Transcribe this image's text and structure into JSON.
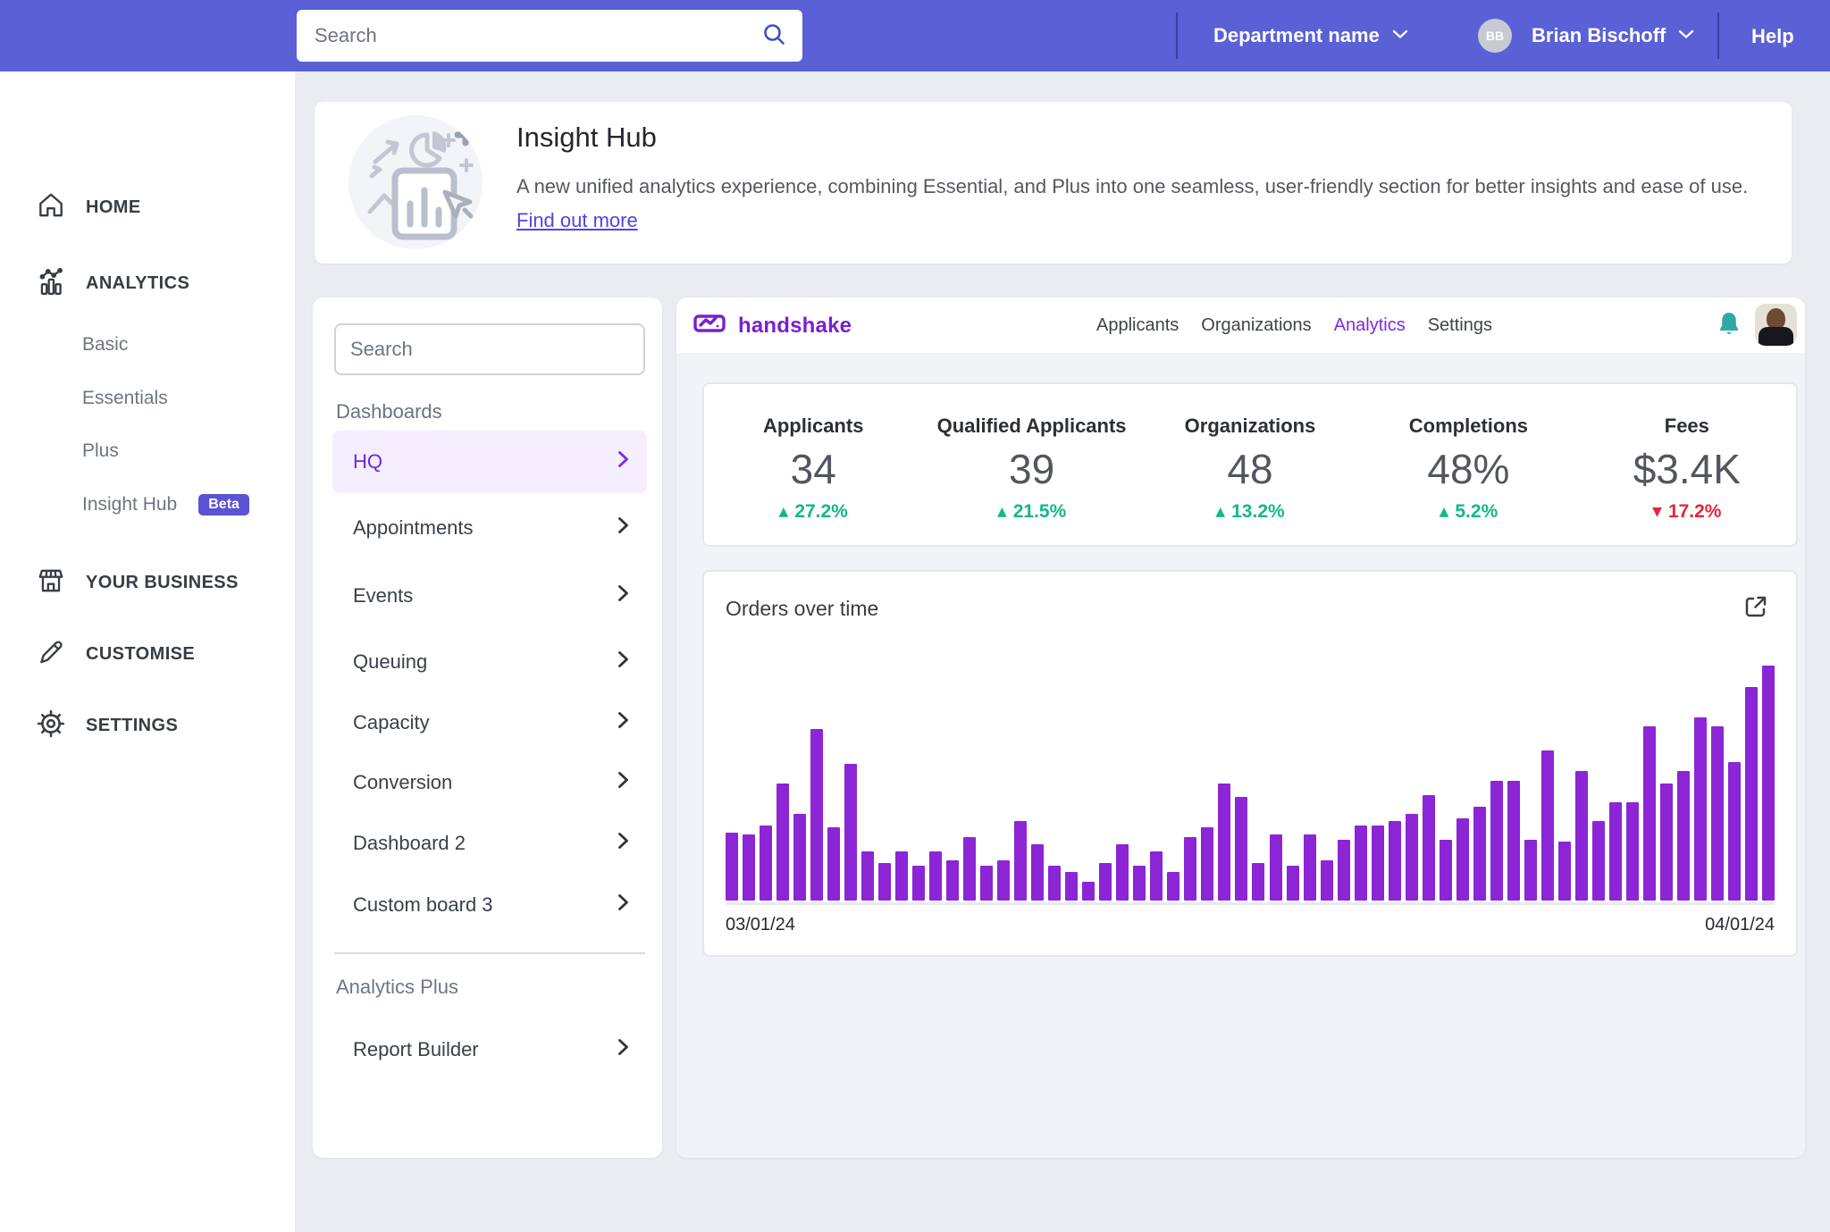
{
  "topbar": {
    "search_placeholder": "Search",
    "department_label": "Department name",
    "user_initials": "BB",
    "user_name": "Brian Bischoff",
    "help_label": "Help"
  },
  "sidebar": {
    "items": [
      {
        "label": "HOME",
        "icon": "home-icon"
      },
      {
        "label": "ANALYTICS",
        "icon": "analytics-icon"
      },
      {
        "label": "YOUR BUSINESS",
        "icon": "storefront-icon"
      },
      {
        "label": "CUSTOMISE",
        "icon": "pencil-icon"
      },
      {
        "label": "SETTINGS",
        "icon": "gear-icon"
      }
    ],
    "analytics_children": [
      {
        "label": "Basic"
      },
      {
        "label": "Essentials"
      },
      {
        "label": "Plus"
      },
      {
        "label": "Insight Hub",
        "badge": "Beta"
      }
    ]
  },
  "hero": {
    "title": "Insight Hub",
    "description": "A new unified analytics experience, combining Essential, and Plus into one seamless, user-friendly section for better insights and ease of use.",
    "link_label": "Find out more",
    "icon": "analytics-illustration-icon"
  },
  "panel": {
    "search_placeholder": "Search",
    "section_label": "Dashboards",
    "items": [
      "HQ",
      "Appointments",
      "Events",
      "Queuing",
      "Capacity",
      "Conversion",
      "Dashboard 2",
      "Custom board 3"
    ],
    "active_item": "HQ",
    "plus_section_label": "Analytics Plus",
    "plus_items": [
      "Report Builder"
    ]
  },
  "app": {
    "brand": "handshake",
    "nav": [
      "Applicants",
      "Organizations",
      "Analytics",
      "Settings"
    ],
    "active_nav": "Analytics",
    "icons": [
      "handshake-logo-icon",
      "bell-icon",
      "user-avatar-photo"
    ]
  },
  "stats": [
    {
      "label": "Applicants",
      "value": "34",
      "delta": "27.2%",
      "direction": "up",
      "arrow": "▲"
    },
    {
      "label": "Qualified Applicants",
      "value": "39",
      "delta": "21.5%",
      "direction": "up",
      "arrow": "▲"
    },
    {
      "label": "Organizations",
      "value": "48",
      "delta": "13.2%",
      "direction": "up",
      "arrow": "▲"
    },
    {
      "label": "Completions",
      "value": "48%",
      "delta": "5.2%",
      "direction": "up",
      "arrow": "▲"
    },
    {
      "label": "Fees",
      "value": "$3.4K",
      "delta": "17.2%",
      "direction": "down",
      "arrow": "▼"
    }
  ],
  "chart_data": {
    "type": "bar",
    "title": "Orders over time",
    "x_start_label": "03/01/24",
    "x_end_label": "04/01/24",
    "y_axis_shown": false,
    "grid": false,
    "legend": false,
    "bar_color": "#8c25d6",
    "values_unit": "percent of tallest bar",
    "values": [
      29,
      28,
      32,
      50,
      37,
      73,
      31,
      58,
      21,
      16,
      21,
      15,
      21,
      17,
      27,
      15,
      17,
      34,
      24,
      15,
      12,
      8,
      16,
      24,
      15,
      21,
      12,
      27,
      31,
      50,
      44,
      16,
      28,
      15,
      28,
      17,
      26,
      32,
      32,
      34,
      37,
      45,
      26,
      35,
      40,
      51,
      51,
      26,
      64,
      25,
      55,
      34,
      42,
      42,
      74,
      50,
      55,
      78,
      74,
      59,
      91,
      100
    ]
  },
  "colors": {
    "topbar": "#5a60d6",
    "page_bg": "#eaecf2",
    "app_bg": "#f1f3f8",
    "bar_purple": "#8c25d6",
    "brand_purple": "#7a1fd1",
    "active_nav_purple": "#8428dd",
    "hq_active_bg": "#f4eefe",
    "hq_active_text": "#6d28d9",
    "beta_badge_bg": "#5b52d6",
    "delta_up_green": "#14b789",
    "delta_down_red": "#e0263e",
    "bell_teal": "#2ea9a4",
    "link_indigo": "#4f46e5"
  }
}
